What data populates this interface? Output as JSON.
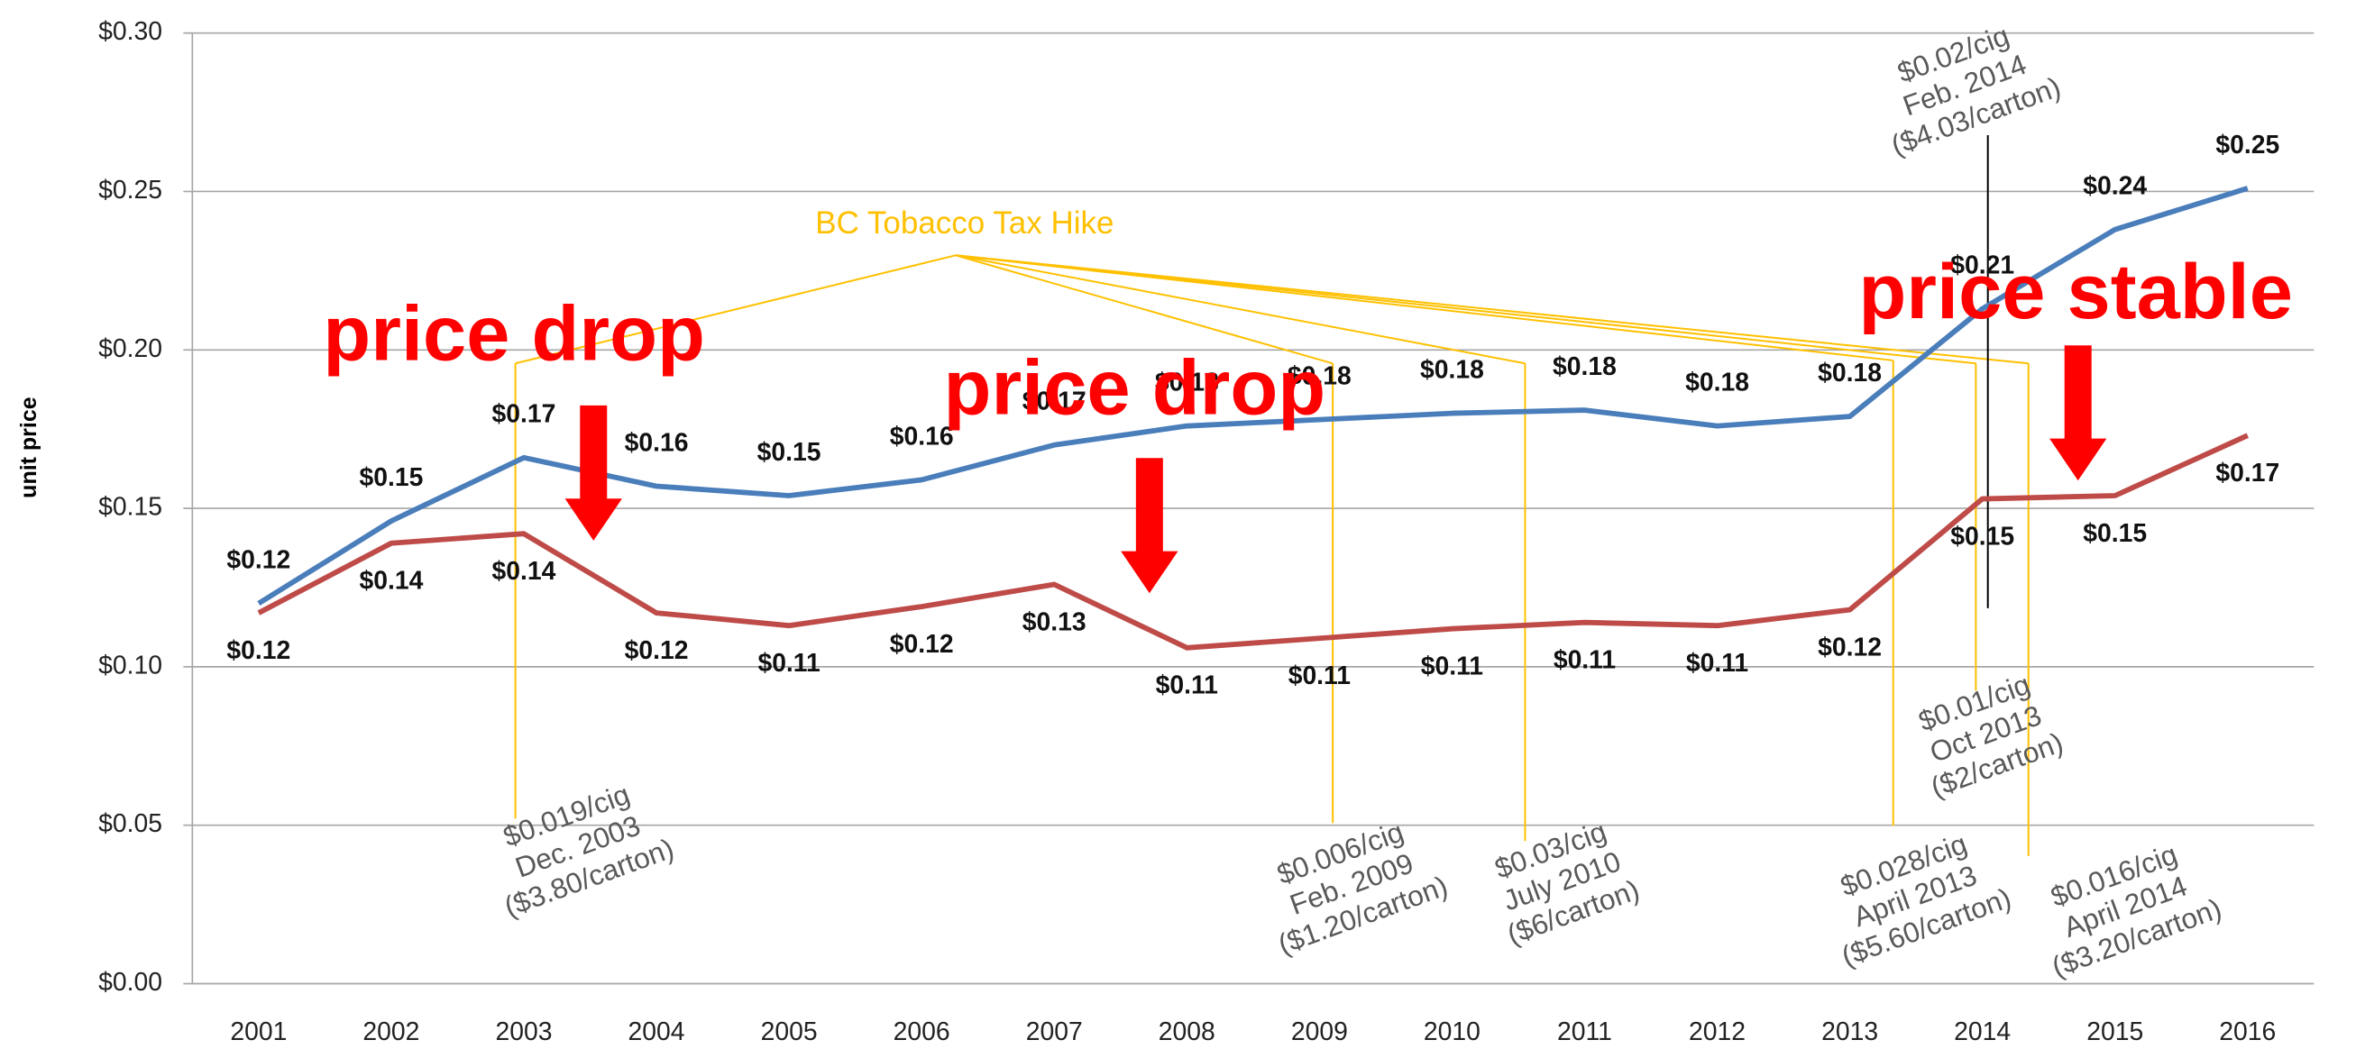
{
  "chart_data": {
    "type": "line",
    "y_label": "unit price",
    "categories": [
      "2001",
      "2002",
      "2003",
      "2004",
      "2005",
      "2006",
      "2007",
      "2008",
      "2009",
      "2010",
      "2011",
      "2012",
      "2013",
      "2014",
      "2015",
      "2016"
    ],
    "series": [
      {
        "name": "blue",
        "color": "#4a7ebb",
        "values": [
          0.12,
          0.146,
          0.166,
          0.157,
          0.154,
          0.159,
          0.17,
          0.176,
          0.178,
          0.18,
          0.181,
          0.176,
          0.179,
          0.213,
          0.238,
          0.251
        ],
        "value_labels": [
          "$0.12",
          "$0.15",
          "$0.17",
          "$0.16",
          "$0.15",
          "$0.16",
          "$0.17",
          "$0.18",
          "$0.18",
          "$0.18",
          "$0.18",
          "$0.18",
          "$0.18",
          "$0.21",
          "$0.24",
          "$0.25"
        ]
      },
      {
        "name": "red",
        "color": "#be4b48",
        "values": [
          0.117,
          0.139,
          0.142,
          0.117,
          0.113,
          0.119,
          0.126,
          0.106,
          0.109,
          0.112,
          0.114,
          0.113,
          0.118,
          0.153,
          0.154,
          0.173
        ],
        "value_labels": [
          "$0.12",
          "$0.14",
          "$0.14",
          "$0.12",
          "$0.11",
          "$0.12",
          "$0.13",
          "$0.11",
          "$0.11",
          "$0.11",
          "$0.11",
          "$0.11",
          "$0.12",
          "$0.15",
          "$0.15",
          "$0.17"
        ]
      }
    ],
    "ylim": [
      0,
      0.3
    ],
    "yticks": [
      {
        "value": 0,
        "label": "$0.00"
      },
      {
        "value": 0.05,
        "label": "$0.05"
      },
      {
        "value": 0.1,
        "label": "$0.10"
      },
      {
        "value": 0.15,
        "label": "$0.15"
      },
      {
        "value": 0.2,
        "label": "$0.20"
      },
      {
        "value": 0.25,
        "label": "$0.25"
      },
      {
        "value": 0.3,
        "label": "$0.30"
      }
    ],
    "grid": true,
    "annotations": {
      "tax_hike": "BC Tobacco Tax Hike",
      "labels": [
        "price drop",
        "price drop",
        "price stable"
      ],
      "notes": [
        [
          "$0.019/cig",
          "Dec. 2003",
          "($3.80/carton)"
        ],
        [
          "$0.006/cig",
          "Feb. 2009",
          "($1.20/carton)"
        ],
        [
          "$0.03/cig",
          "July 2010",
          "($6/carton)"
        ],
        [
          "$0.028/cig",
          "April 2013",
          "($5.60/carton)"
        ],
        [
          "$0.01/cig",
          "Oct  2013",
          "($2/carton)"
        ],
        [
          "$0.016/cig",
          "April 2014",
          "($3.20/carton)"
        ],
        [
          "$0.02/cig",
          "Feb. 2014",
          "($4.03/carton)"
        ]
      ]
    }
  }
}
